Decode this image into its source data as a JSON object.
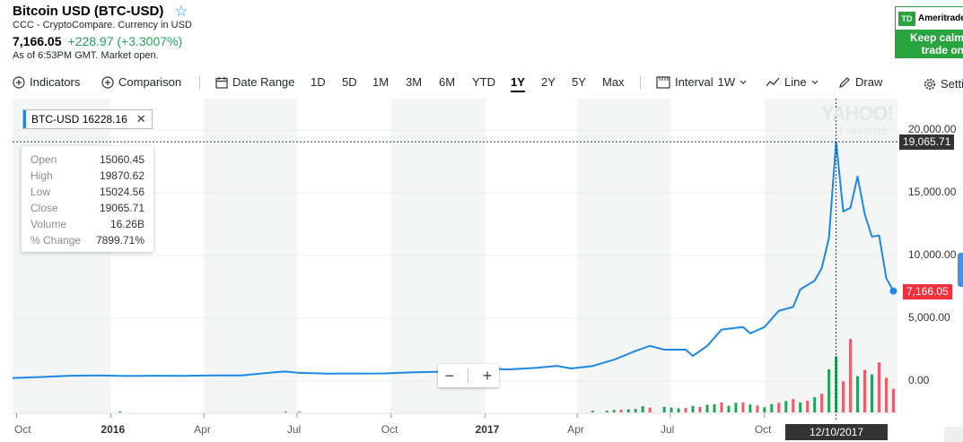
{
  "header": {
    "title": "Bitcoin USD (BTC-USD)",
    "source": "CCC - CryptoCompare. Currency in USD",
    "price": "7,166.05",
    "change": "+228.97 (+3.3007%)",
    "as_of": "As of 6:53PM GMT. Market open."
  },
  "ad": {
    "logo": "TD",
    "brand": "Ameritrade",
    "line1": "Keep calm",
    "line2": "trade on"
  },
  "toolbar": {
    "indicators": "Indicators",
    "comparison": "Comparison",
    "date_range": "Date Range",
    "ranges": [
      "1D",
      "5D",
      "1M",
      "3M",
      "6M",
      "YTD",
      "1Y",
      "2Y",
      "5Y",
      "Max"
    ],
    "active_range": "1Y",
    "interval_label": "Interval",
    "interval_value": "1W",
    "chart_type": "Line",
    "draw": "Draw",
    "settings": "Settings"
  },
  "legend": {
    "symbol": "BTC-USD",
    "value": "16228.16",
    "close": "✕"
  },
  "tooltip": {
    "rows": [
      {
        "k": "Open",
        "v": "15060.45"
      },
      {
        "k": "High",
        "v": "19870.62"
      },
      {
        "k": "Low",
        "v": "15024.56"
      },
      {
        "k": "Close",
        "v": "19065.71"
      },
      {
        "k": "Volume",
        "v": "16.26B"
      },
      {
        "k": "% Change",
        "v": "7899.71%"
      }
    ]
  },
  "zoom": {
    "minus": "−",
    "plus": "+"
  },
  "watermark": {
    "main": "YAHOO!",
    "sub": "FINANCE"
  },
  "crosshair": {
    "price": "19,065.71",
    "date": "12/10/2017"
  },
  "current_price_flag": "7,166.05",
  "colors": {
    "line": "#1e88e5",
    "up": "#21a35d",
    "down": "#f25a6a",
    "flag_current": "#f0313d",
    "flag_cross": "#333333"
  },
  "chart_data": {
    "type": "line",
    "y_ticks": [
      "20,000.00",
      "15,000.00",
      "10,000.00",
      "5,000.00",
      "0.00"
    ],
    "y_tick_values": [
      20000,
      15000,
      10000,
      5000,
      0
    ],
    "ylim": [
      -2500,
      22500
    ],
    "x_labels": [
      "Oct",
      "2016",
      "Apr",
      "Jul",
      "Oct",
      "2017",
      "Apr",
      "Jul",
      "Oct"
    ],
    "x_label_bold": [
      false,
      true,
      false,
      false,
      false,
      true,
      false,
      false,
      false
    ],
    "x_label_dates": [
      "2015-10-01",
      "2016-01-01",
      "2016-04-01",
      "2016-07-01",
      "2016-10-01",
      "2017-01-01",
      "2017-04-01",
      "2017-07-01",
      "2017-10-01"
    ],
    "xlim": [
      "2015-09-27",
      "2018-02-08"
    ],
    "series": [
      {
        "x": [
          "2015-09-27",
          "2015-10-25",
          "2015-11-22",
          "2015-12-20",
          "2016-01-17",
          "2016-02-14",
          "2016-03-13",
          "2016-04-10",
          "2016-05-08",
          "2016-06-05",
          "2016-06-19",
          "2016-07-03",
          "2016-07-31",
          "2016-08-28",
          "2016-09-25",
          "2016-10-23",
          "2016-11-20",
          "2016-12-18",
          "2017-01-08",
          "2017-01-22",
          "2017-02-19",
          "2017-03-12",
          "2017-03-26",
          "2017-04-16",
          "2017-05-07",
          "2017-05-28",
          "2017-06-11",
          "2017-06-25",
          "2017-07-16",
          "2017-07-23",
          "2017-08-06",
          "2017-08-20",
          "2017-09-10",
          "2017-09-17",
          "2017-10-01",
          "2017-10-15",
          "2017-10-29",
          "2017-11-05",
          "2017-11-19",
          "2017-11-26",
          "2017-12-03",
          "2017-12-10",
          "2017-12-17",
          "2017-12-24",
          "2017-12-31",
          "2018-01-07",
          "2018-01-14",
          "2018-01-21",
          "2018-01-28",
          "2018-02-04"
        ],
        "y": [
          240,
          320,
          420,
          450,
          400,
          420,
          415,
          440,
          450,
          670,
          760,
          650,
          590,
          600,
          610,
          700,
          740,
          900,
          1000,
          920,
          1040,
          1210,
          1000,
          1200,
          1700,
          2400,
          2800,
          2500,
          2500,
          2000,
          2800,
          4100,
          4300,
          3800,
          4300,
          5600,
          5900,
          7300,
          8000,
          9000,
          11400,
          19065,
          13500,
          13800,
          16300,
          13300,
          11500,
          11600,
          8200,
          7166
        ]
      }
    ],
    "volume": {
      "x": [
        "2016-01-10",
        "2016-06-20",
        "2016-07-03",
        "2017-04-16",
        "2017-04-30",
        "2017-05-07",
        "2017-05-14",
        "2017-05-21",
        "2017-05-28",
        "2017-06-04",
        "2017-06-11",
        "2017-06-25",
        "2017-07-02",
        "2017-07-09",
        "2017-07-16",
        "2017-07-23",
        "2017-07-30",
        "2017-08-06",
        "2017-08-13",
        "2017-08-20",
        "2017-08-27",
        "2017-09-03",
        "2017-09-10",
        "2017-09-17",
        "2017-09-24",
        "2017-10-01",
        "2017-10-08",
        "2017-10-15",
        "2017-10-22",
        "2017-10-29",
        "2017-11-05",
        "2017-11-12",
        "2017-11-19",
        "2017-11-26",
        "2017-12-03",
        "2017-12-10",
        "2017-12-17",
        "2017-12-24",
        "2017-12-31",
        "2018-01-07",
        "2018-01-14",
        "2018-01-21",
        "2018-01-28",
        "2018-02-04"
      ],
      "v": [
        0.3,
        0.3,
        0.3,
        0.5,
        0.5,
        0.7,
        0.8,
        0.9,
        1.0,
        1.8,
        1.4,
        1.6,
        1.4,
        1.2,
        1.3,
        1.9,
        1.6,
        2.2,
        2.4,
        2.9,
        1.9,
        2.8,
        2.9,
        2.3,
        2.0,
        1.5,
        2.4,
        2.8,
        3.3,
        3.9,
        2.9,
        3.4,
        4.4,
        5.4,
        12.5,
        16.26,
        9.0,
        21.3,
        10.5,
        12.3,
        11.0,
        14.5,
        10.0,
        6.8
      ],
      "up": [
        true,
        false,
        false,
        true,
        true,
        true,
        false,
        true,
        true,
        true,
        false,
        true,
        true,
        true,
        false,
        true,
        false,
        true,
        true,
        false,
        true,
        true,
        false,
        true,
        false,
        true,
        true,
        false,
        true,
        false,
        true,
        false,
        true,
        false,
        true,
        true,
        false,
        false,
        true,
        false,
        true,
        false,
        false,
        false
      ]
    }
  }
}
